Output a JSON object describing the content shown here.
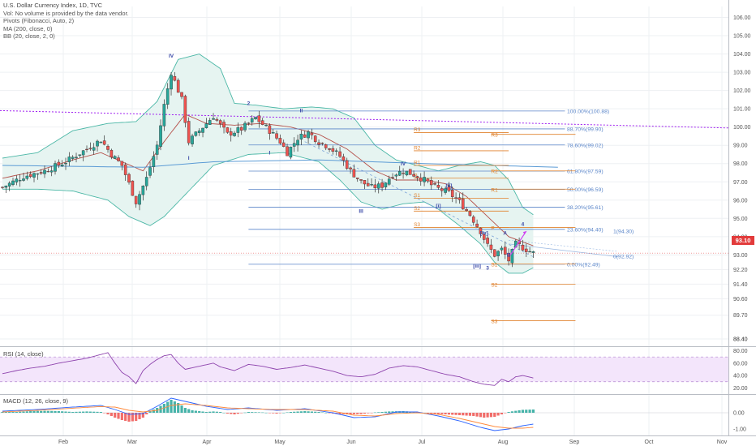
{
  "header": {
    "title": "U.S. Dollar Currency Index, 1D, TVC",
    "lines": [
      "Vol: No volume is provided by the data vendor.",
      "Pivots (Fibonacci, Auto, 2)",
      "MA (200, close, 0)",
      "BB (20, close, 2, 0)"
    ]
  },
  "rsi_label": "RSI (14, close)",
  "macd_label": "MACD (12, 26, close, 9)",
  "last_price": "93.10",
  "colors": {
    "up": "#26a69a",
    "down": "#ef5350",
    "ma200": "#5b9bd5",
    "bb": "#4bb7a6",
    "bb_fill": "#e6f4f1",
    "pivot": "#e0822e",
    "fib": "#5b86c9",
    "trend": "#a020f0",
    "rsi": "#8e44ad",
    "rsi_band": "#f3e5fb",
    "projection": "#d040f0",
    "last": "#e23b3b"
  },
  "chart_data": [
    {
      "type": "candlestick",
      "title": "U.S. Dollar Currency Index, 1D, TVC",
      "x_ticks": [
        "Feb",
        "Mar",
        "Apr",
        "May",
        "Jun",
        "Jul",
        "Aug",
        "Sep",
        "Oct",
        "Nov"
      ],
      "y_ticks": [
        "106.00",
        "105.00",
        "104.00",
        "103.00",
        "102.00",
        "101.00",
        "100.00",
        "99.00",
        "98.00",
        "97.00",
        "96.00",
        "95.00",
        "94.00",
        "93.00",
        "92.20",
        "91.40",
        "90.60",
        "89.70",
        "88.40",
        "88.40"
      ],
      "y_range": [
        88.0,
        106.6
      ],
      "last_price": 93.1,
      "close_anchors": [
        [
          0,
          96.7
        ],
        [
          6,
          97.3
        ],
        [
          12,
          97.6
        ],
        [
          18,
          98.1
        ],
        [
          24,
          98.8
        ],
        [
          28,
          99.3
        ],
        [
          31,
          98.5
        ],
        [
          34,
          97.9
        ],
        [
          36,
          96.9
        ],
        [
          38,
          95.9
        ],
        [
          41,
          97.2
        ],
        [
          44,
          99.0
        ],
        [
          46,
          101.2
        ],
        [
          48,
          103.0
        ],
        [
          51,
          101.5
        ],
        [
          53,
          99.2
        ],
        [
          57,
          100.0
        ],
        [
          60,
          100.6
        ],
        [
          64,
          99.6
        ],
        [
          68,
          99.9
        ],
        [
          72,
          100.5
        ],
        [
          76,
          99.8
        ],
        [
          79,
          99.2
        ],
        [
          81,
          98.6
        ],
        [
          84,
          99.4
        ],
        [
          87,
          99.7
        ],
        [
          90,
          99.2
        ],
        [
          93,
          98.9
        ],
        [
          96,
          98.4
        ],
        [
          99,
          97.6
        ],
        [
          102,
          97.0
        ],
        [
          105,
          96.7
        ],
        [
          108,
          96.8
        ],
        [
          111,
          97.4
        ],
        [
          114,
          97.6
        ],
        [
          117,
          97.4
        ],
        [
          120,
          97.1
        ],
        [
          123,
          96.7
        ],
        [
          127,
          96.4
        ],
        [
          130,
          95.9
        ],
        [
          133,
          95.2
        ],
        [
          136,
          94.3
        ],
        [
          138,
          93.5
        ],
        [
          140,
          93.0
        ],
        [
          142,
          93.3
        ],
        [
          144,
          92.7
        ],
        [
          146,
          93.6
        ],
        [
          148,
          93.4
        ],
        [
          151,
          93.1
        ]
      ],
      "ma200": [
        [
          0,
          97.9
        ],
        [
          40,
          97.8
        ],
        [
          60,
          98.1
        ],
        [
          90,
          98.2
        ],
        [
          120,
          98.0
        ],
        [
          158,
          97.8
        ]
      ],
      "bollinger": {
        "upper": [
          [
            0,
            98.3
          ],
          [
            10,
            98.6
          ],
          [
            20,
            99.8
          ],
          [
            30,
            100.2
          ],
          [
            38,
            100.3
          ],
          [
            44,
            101.4
          ],
          [
            50,
            103.7
          ],
          [
            56,
            104.0
          ],
          [
            62,
            103.2
          ],
          [
            66,
            101.3
          ],
          [
            72,
            101.2
          ],
          [
            80,
            101.0
          ],
          [
            88,
            101.1
          ],
          [
            94,
            101.0
          ],
          [
            100,
            100.5
          ],
          [
            106,
            99.0
          ],
          [
            112,
            98.2
          ],
          [
            118,
            97.9
          ],
          [
            124,
            97.6
          ],
          [
            130,
            97.9
          ],
          [
            136,
            98.1
          ],
          [
            140,
            97.9
          ],
          [
            144,
            97.1
          ],
          [
            148,
            95.6
          ],
          [
            151,
            95.2
          ]
        ],
        "lower": [
          [
            0,
            96.6
          ],
          [
            10,
            96.6
          ],
          [
            20,
            96.5
          ],
          [
            30,
            96.0
          ],
          [
            36,
            95.1
          ],
          [
            42,
            94.6
          ],
          [
            46,
            95.1
          ],
          [
            52,
            96.3
          ],
          [
            60,
            97.9
          ],
          [
            70,
            98.5
          ],
          [
            80,
            98.6
          ],
          [
            90,
            98.1
          ],
          [
            96,
            97.1
          ],
          [
            102,
            95.9
          ],
          [
            108,
            95.5
          ],
          [
            114,
            95.8
          ],
          [
            120,
            95.9
          ],
          [
            124,
            95.5
          ],
          [
            130,
            94.6
          ],
          [
            136,
            93.6
          ],
          [
            140,
            92.6
          ],
          [
            144,
            92.0
          ],
          [
            148,
            92.0
          ],
          [
            151,
            92.3
          ]
        ]
      },
      "ma20": [
        [
          0,
          97.2
        ],
        [
          10,
          97.6
        ],
        [
          20,
          98.2
        ],
        [
          28,
          98.6
        ],
        [
          34,
          98.1
        ],
        [
          40,
          97.6
        ],
        [
          46,
          99.2
        ],
        [
          52,
          100.7
        ],
        [
          58,
          100.2
        ],
        [
          66,
          100.1
        ],
        [
          74,
          100.2
        ],
        [
          82,
          100.0
        ],
        [
          90,
          99.6
        ],
        [
          98,
          98.8
        ],
        [
          106,
          97.6
        ],
        [
          112,
          97.1
        ],
        [
          120,
          97.1
        ],
        [
          126,
          96.9
        ],
        [
          132,
          96.2
        ],
        [
          138,
          95.1
        ],
        [
          144,
          94.0
        ],
        [
          151,
          93.5
        ]
      ],
      "fib_levels": [
        {
          "label": "100.00%(100.88)",
          "value": 100.88
        },
        {
          "label": "88.70%(99.90)",
          "value": 99.9
        },
        {
          "label": "78.60%(99.02)",
          "value": 99.02
        },
        {
          "label": "61.80%(97.59)",
          "value": 97.59
        },
        {
          "label": "50.00%(96.59)",
          "value": 96.59
        },
        {
          "label": "38.20%(95.61)",
          "value": 95.61
        },
        {
          "label": "23.60%(94.40)",
          "value": 94.4
        },
        {
          "label": "0.00%(92.49)",
          "value": 92.49
        }
      ],
      "pivots_q2": [
        {
          "label": "R3",
          "value": 99.7
        },
        {
          "label": "R2",
          "value": 98.7
        },
        {
          "label": "R1",
          "value": 97.9
        },
        {
          "label": "P",
          "value": 97.2
        },
        {
          "label": "S1",
          "value": 96.1
        },
        {
          "label": "S2",
          "value": 95.4
        },
        {
          "label": "S3",
          "value": 94.5
        }
      ],
      "pivots_q3": [
        {
          "label": "R3",
          "value": 99.6
        },
        {
          "label": "R2",
          "value": 97.6
        },
        {
          "label": "R1",
          "value": 96.6
        },
        {
          "label": "P",
          "value": 94.5
        },
        {
          "label": "S1",
          "value": 92.5
        },
        {
          "label": "S2",
          "value": 91.4
        },
        {
          "label": "S3",
          "value": 89.4
        }
      ],
      "wave_labels": [
        {
          "text": "IV",
          "x": 48,
          "y": 103.8
        },
        {
          "text": "I",
          "x": 53,
          "y": 98.2
        },
        {
          "text": "2",
          "x": 70,
          "y": 101.2
        },
        {
          "text": "II",
          "x": 85,
          "y": 100.8
        },
        {
          "text": "I",
          "x": 76,
          "y": 98.5
        },
        {
          "text": "III",
          "x": 102,
          "y": 95.3
        },
        {
          "text": "IV",
          "x": 114,
          "y": 97.9
        },
        {
          "text": "[ii]",
          "x": 127,
          "y": 96.7
        },
        {
          "text": "[i]",
          "x": 124,
          "y": 95.6
        },
        {
          "text": "[iv]",
          "x": 137,
          "y": 94.1
        },
        {
          "text": "[iii]",
          "x": 135,
          "y": 92.3
        },
        {
          "text": "3",
          "x": 138,
          "y": 92.2
        },
        {
          "text": "A",
          "x": 143,
          "y": 94.1
        },
        {
          "text": "B",
          "x": 144,
          "y": 92.9
        },
        {
          "text": "4",
          "x": 148,
          "y": 94.6
        }
      ],
      "targets": [
        {
          "label": "1(94.30)",
          "value": 94.3
        },
        {
          "label": "0(92.92)",
          "value": 92.92
        }
      ]
    },
    {
      "type": "line",
      "title": "RSI (14, close)",
      "y_ticks": [
        "80.00",
        "60.00",
        "40.00",
        "20.00"
      ],
      "y_range": [
        10,
        86
      ],
      "band": [
        30,
        70
      ],
      "values": [
        [
          0,
          43
        ],
        [
          4,
          48
        ],
        [
          8,
          52
        ],
        [
          12,
          55
        ],
        [
          16,
          60
        ],
        [
          20,
          64
        ],
        [
          24,
          68
        ],
        [
          28,
          74
        ],
        [
          30,
          77
        ],
        [
          32,
          60
        ],
        [
          34,
          45
        ],
        [
          36,
          38
        ],
        [
          38,
          27
        ],
        [
          40,
          48
        ],
        [
          42,
          58
        ],
        [
          44,
          66
        ],
        [
          46,
          72
        ],
        [
          48,
          74
        ],
        [
          50,
          60
        ],
        [
          52,
          50
        ],
        [
          56,
          55
        ],
        [
          60,
          60
        ],
        [
          62,
          54
        ],
        [
          66,
          48
        ],
        [
          70,
          58
        ],
        [
          74,
          55
        ],
        [
          78,
          50
        ],
        [
          82,
          53
        ],
        [
          86,
          57
        ],
        [
          90,
          52
        ],
        [
          94,
          47
        ],
        [
          98,
          40
        ],
        [
          102,
          38
        ],
        [
          106,
          42
        ],
        [
          110,
          52
        ],
        [
          114,
          56
        ],
        [
          118,
          54
        ],
        [
          122,
          48
        ],
        [
          126,
          42
        ],
        [
          130,
          38
        ],
        [
          134,
          30
        ],
        [
          137,
          26
        ],
        [
          140,
          24
        ],
        [
          142,
          34
        ],
        [
          144,
          30
        ],
        [
          146,
          38
        ],
        [
          148,
          40
        ],
        [
          151,
          36
        ]
      ]
    },
    {
      "type": "line",
      "title": "MACD (12, 26, close, 9)",
      "y_ticks": [
        "0.00",
        "-1.00"
      ],
      "y_range": [
        -1.4,
        1.1
      ],
      "histogram": [
        [
          0,
          0.05
        ],
        [
          4,
          0.05
        ],
        [
          8,
          0.1
        ],
        [
          12,
          0.12
        ],
        [
          16,
          0.1
        ],
        [
          20,
          0.05
        ],
        [
          24,
          0.08
        ],
        [
          28,
          0.05
        ],
        [
          30,
          -0.1
        ],
        [
          32,
          -0.3
        ],
        [
          34,
          -0.45
        ],
        [
          36,
          -0.55
        ],
        [
          38,
          -0.5
        ],
        [
          40,
          -0.3
        ],
        [
          42,
          0.1
        ],
        [
          44,
          0.3
        ],
        [
          46,
          0.55
        ],
        [
          48,
          0.8
        ],
        [
          50,
          0.6
        ],
        [
          52,
          0.3
        ],
        [
          54,
          0.15
        ],
        [
          56,
          0.1
        ],
        [
          58,
          0.05
        ],
        [
          60,
          0.08
        ],
        [
          62,
          0.05
        ],
        [
          64,
          -0.05
        ],
        [
          66,
          -0.1
        ],
        [
          70,
          0.05
        ],
        [
          74,
          0.02
        ],
        [
          78,
          -0.05
        ],
        [
          82,
          0.05
        ],
        [
          86,
          0.1
        ],
        [
          90,
          0.05
        ],
        [
          94,
          -0.05
        ],
        [
          98,
          -0.1
        ],
        [
          102,
          -0.08
        ],
        [
          106,
          0.02
        ],
        [
          110,
          0.08
        ],
        [
          114,
          0.1
        ],
        [
          118,
          0.05
        ],
        [
          122,
          -0.05
        ],
        [
          126,
          -0.1
        ],
        [
          130,
          -0.15
        ],
        [
          134,
          -0.2
        ],
        [
          137,
          -0.3
        ],
        [
          140,
          -0.25
        ],
        [
          142,
          -0.1
        ],
        [
          144,
          0.05
        ],
        [
          146,
          0.12
        ],
        [
          148,
          0.18
        ],
        [
          151,
          0.2
        ]
      ],
      "macd_line": [
        [
          0,
          0.1
        ],
        [
          10,
          0.2
        ],
        [
          20,
          0.35
        ],
        [
          28,
          0.45
        ],
        [
          32,
          0.2
        ],
        [
          36,
          -0.1
        ],
        [
          40,
          -0.05
        ],
        [
          44,
          0.4
        ],
        [
          48,
          0.9
        ],
        [
          52,
          0.7
        ],
        [
          58,
          0.4
        ],
        [
          64,
          0.2
        ],
        [
          70,
          0.3
        ],
        [
          78,
          0.15
        ],
        [
          86,
          0.25
        ],
        [
          94,
          0.0
        ],
        [
          100,
          -0.3
        ],
        [
          106,
          -0.25
        ],
        [
          112,
          0.05
        ],
        [
          118,
          0.05
        ],
        [
          124,
          -0.2
        ],
        [
          130,
          -0.5
        ],
        [
          136,
          -0.9
        ],
        [
          140,
          -1.1
        ],
        [
          144,
          -1.0
        ],
        [
          148,
          -0.8
        ],
        [
          151,
          -0.7
        ]
      ],
      "signal_line": [
        [
          0,
          0.05
        ],
        [
          10,
          0.15
        ],
        [
          20,
          0.28
        ],
        [
          28,
          0.38
        ],
        [
          32,
          0.35
        ],
        [
          36,
          0.15
        ],
        [
          40,
          0.05
        ],
        [
          44,
          0.15
        ],
        [
          48,
          0.45
        ],
        [
          52,
          0.55
        ],
        [
          58,
          0.45
        ],
        [
          64,
          0.3
        ],
        [
          70,
          0.25
        ],
        [
          78,
          0.2
        ],
        [
          86,
          0.2
        ],
        [
          94,
          0.1
        ],
        [
          100,
          -0.15
        ],
        [
          106,
          -0.2
        ],
        [
          112,
          -0.05
        ],
        [
          118,
          0.0
        ],
        [
          124,
          -0.1
        ],
        [
          130,
          -0.35
        ],
        [
          136,
          -0.65
        ],
        [
          140,
          -0.85
        ],
        [
          144,
          -0.95
        ],
        [
          148,
          -0.95
        ],
        [
          151,
          -0.9
        ]
      ]
    }
  ]
}
